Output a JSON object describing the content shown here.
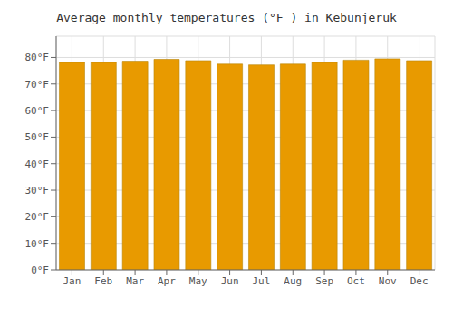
{
  "chart_data": {
    "type": "bar",
    "title": "Average monthly temperatures (°F ) in Kebunjeruk",
    "categories": [
      "Jan",
      "Feb",
      "Mar",
      "Apr",
      "May",
      "Jun",
      "Jul",
      "Aug",
      "Sep",
      "Oct",
      "Nov",
      "Dec"
    ],
    "values": [
      78.1,
      78.1,
      78.6,
      79.3,
      78.8,
      77.5,
      77.2,
      77.5,
      78.1,
      79.0,
      79.5,
      78.8
    ],
    "color": "#E89A00",
    "ylim": [
      0,
      88
    ],
    "yticks": [
      {
        "value": 0,
        "label": "0°F"
      },
      {
        "value": 10,
        "label": "10°F"
      },
      {
        "value": 20,
        "label": "20°F"
      },
      {
        "value": 30,
        "label": "30°F"
      },
      {
        "value": 40,
        "label": "40°F"
      },
      {
        "value": 50,
        "label": "50°F"
      },
      {
        "value": 60,
        "label": "60°F"
      },
      {
        "value": 70,
        "label": "70°F"
      },
      {
        "value": 80,
        "label": "80°F"
      }
    ],
    "grid": true
  }
}
